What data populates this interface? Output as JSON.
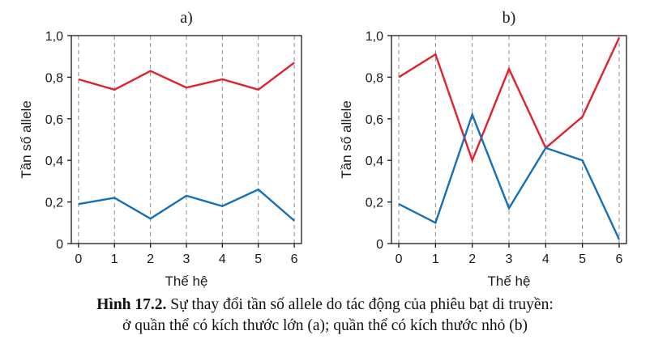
{
  "figure": {
    "caption_label": "Hình 17.2.",
    "caption_line1": "Sự thay đổi tần số allele do tác động của phiêu bạt di truyền:",
    "caption_line2": "ở quần thể có kích thước lớn (a); quần thể có kích thước nhỏ (b)"
  },
  "colors": {
    "red": "#e0212e",
    "blue": "#1570b8",
    "axis": "#1a1a1a",
    "grid": "#8c8c8c"
  },
  "chart_data": [
    {
      "type": "line",
      "title": "a)",
      "xlabel": "Thế hệ",
      "ylabel": "Tần số allele",
      "x": [
        0,
        1,
        2,
        3,
        4,
        5,
        6
      ],
      "xticks": [
        "0",
        "1",
        "2",
        "3",
        "4",
        "5",
        "6"
      ],
      "yticks": [
        {
          "value": 0,
          "label": "0"
        },
        {
          "value": 0.2,
          "label": "0,2"
        },
        {
          "value": 0.4,
          "label": "0,4"
        },
        {
          "value": 0.6,
          "label": "0,6"
        },
        {
          "value": 0.8,
          "label": "0,8"
        },
        {
          "value": 1.0,
          "label": "1,0"
        }
      ],
      "ylim": [
        0,
        1.0
      ],
      "xlim": [
        -0.2,
        6.2
      ],
      "grid": "vertical dashed",
      "series": [
        {
          "color": "#e0212e",
          "values": [
            0.79,
            0.74,
            0.83,
            0.75,
            0.79,
            0.74,
            0.87
          ]
        },
        {
          "color": "#1570b8",
          "values": [
            0.19,
            0.22,
            0.12,
            0.23,
            0.18,
            0.26,
            0.11
          ]
        }
      ]
    },
    {
      "type": "line",
      "title": "b)",
      "xlabel": "Thế hệ",
      "ylabel": "Tần số allele",
      "x": [
        0,
        1,
        2,
        3,
        4,
        5,
        6
      ],
      "xticks": [
        "0",
        "1",
        "2",
        "3",
        "4",
        "5",
        "6"
      ],
      "yticks": [
        {
          "value": 0,
          "label": "0"
        },
        {
          "value": 0.2,
          "label": "0,2"
        },
        {
          "value": 0.4,
          "label": "0,4"
        },
        {
          "value": 0.6,
          "label": "0,6"
        },
        {
          "value": 0.8,
          "label": "0,8"
        },
        {
          "value": 1.0,
          "label": "1,0"
        }
      ],
      "ylim": [
        0,
        1.0
      ],
      "xlim": [
        -0.2,
        6.2
      ],
      "grid": "vertical dashed",
      "series": [
        {
          "color": "#e0212e",
          "values": [
            0.8,
            0.91,
            0.4,
            0.84,
            0.46,
            0.61,
            0.99
          ]
        },
        {
          "color": "#1570b8",
          "values": [
            0.19,
            0.1,
            0.62,
            0.17,
            0.46,
            0.4,
            0.02
          ]
        }
      ]
    }
  ]
}
